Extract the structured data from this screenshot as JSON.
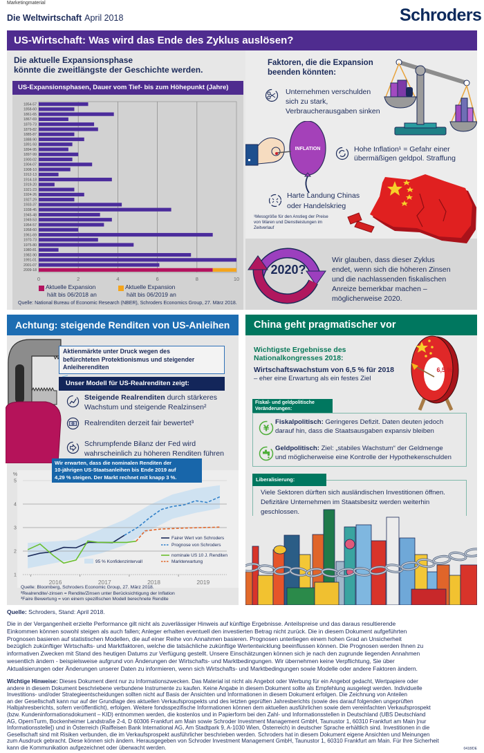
{
  "header": {
    "marketing": "Marketingmaterial",
    "title_bold": "Die Weltwirtschaft",
    "title_date": "April 2018",
    "logo": "Schroders"
  },
  "us": {
    "banner": "US-Wirtschaft: Was wird das Ende des Zyklus auslösen?",
    "headline": [
      "Die aktuelle Expansionsphase",
      "könnte die zweitlängste der Geschichte werden."
    ],
    "chart_source": "Quelle: National Bureau of Economic Research (NBER), Schroders Economics Group, 27. März 2018.",
    "factors_title": [
      "Faktoren, die die Expansion",
      "beenden könnten:"
    ],
    "factors": [
      {
        "icon": "scissors-icon",
        "lines": [
          "Unternehmen verschulden",
          "sich zu stark,",
          "Verbraucherausgaben sinken"
        ]
      },
      {
        "icon": "cycle-arrows-icon",
        "lines": [
          "Hohe Inflation¹ = Gefahr einer",
          "übermäßigen geldpol. Straffung"
        ]
      },
      {
        "icon": "crash-icon",
        "lines": [
          "Harte Landung Chinas",
          "oder Handelskrieg"
        ]
      }
    ],
    "balloon_label": "INFLATION",
    "footnote": [
      "¹Messgröße für den Anstieg der Preise",
      "von Waren und Dienstleistungen im",
      "Zeitverlauf"
    ],
    "cycle_label": "2020?",
    "conclusion": [
      "Wir glauben, dass dieser Zyklus",
      "endet, wenn sich die höheren Z‌insen",
      "und die nachlassenden fiskalischen",
      "Anreize bemerkbar machen –",
      "möglicherweise 2020."
    ]
  },
  "bonds": {
    "banner": "Achtung: steigende Renditen von US-Anleihen",
    "alert": [
      "Aktienmärkte unter Druck wegen des",
      "befürchteten Protektionismus und steigender",
      "Anleiherenditen"
    ],
    "model_title": "Unser Modell für US-Realrenditen zeigt:",
    "items": [
      {
        "icon": "rising-chart-icon",
        "bold": "Steigende Realrenditen",
        "text": " durch stärkeres",
        "line2": "Wachstum und steigende Realzinsen²"
      },
      {
        "icon": "banknote-icon",
        "text": "Realrenditen derzeit fair bewertet³"
      },
      {
        "icon": "arrow-right-icon",
        "text": "Schrumpfende Bilanz der Fed wird",
        "line2": "wahrscheinlich zu höheren Renditen führen"
      }
    ],
    "callout": [
      "Wir erwarten, dass die nominalen Renditen der",
      "10-jährigen US-Staatsanleihen bis Ende 2019 auf",
      "4,29 % steigen. Der Markt rechnet mit knapp 3 %."
    ],
    "notes": [
      "Quelle: Bloomberg, Schroders Economic Group, 27. März 2018.",
      "²Realrendite/-zinsen = Rendite/Zinsen unter Berücksichtigung der Inflation",
      "³Faire Bewertung = von einem spezifischen Modell berechnete Rendite"
    ]
  },
  "china": {
    "banner": "China geht pragmatischer vor",
    "subtitle": [
      "Wichtigste Ergebnisse des",
      "Nationalkongresses 2018:"
    ],
    "growth_bold": "Wirtschaftswachstum von 6,5 % für 2018",
    "growth_note": "– eher eine Erwartung als ein festes Ziel",
    "target_label": "6,5 %",
    "policy_tag": [
      "Fiskal- und geldpolitische",
      "Veränderungen:"
    ],
    "policies": [
      {
        "icon": "yen-icon",
        "bold": "Fiskalpolitisch:",
        "text": " Geringeres Defizit. Daten deuten jedoch",
        "line2": "darauf hin, dass die Staatsausgaben expansiv bleiben"
      },
      {
        "icon": "tap-icon",
        "bold": "Geldpolitisch:",
        "text": " Ziel: „stabiles Wachstum“ der Geldmenge",
        "line2": "und möglicherweise eine Kontrolle der Hypothekenschulden"
      }
    ],
    "liberal_tag": "Liberalisierung:",
    "liberal_text": [
      "Viele Sektoren dürften sich ausländischen Investitionen öffnen.",
      "Defizitäre Unternehmen im Staatsbesitz werden weiterhin",
      "geschlossen."
    ]
  },
  "footer": {
    "source_bold": "Quelle:",
    "source_text": " Schroders, Stand: April 2018.",
    "disclaimer": [
      "Die in der Vergangenheit erzielte Performance gilt nicht als zuverlässiger Hinweis auf künftige Ergebnisse. Anteilspreise und das daraus resultierende",
      "Einkommen können sowohl steigen als auch fallen; Anleger erhalten eventuell den investierten Betrag nicht zurück. Die in diesem Dokument aufgeführten",
      "Prognosen basieren auf statistischen Modellen, die auf einer Reihe von Annahmen basieren. Prognosen unterliegen einem hohen Grad an Unsicherheit",
      "bezüglich zukünftiger Wirtschafts- und Marktfaktoren, welche die tatsächliche zukünftige Wertentwicklung beeinflussen können. Die Prognosen werden Ihnen zu",
      "informativen Zwecken mit Stand des heutigen Datums zur Verfügung gestellt. Unsere Einschätzungen können sich je nach den zugrunde liegenden Annahmen",
      "wesentlich ändern - beispielsweise aufgrund von Änderungen der Wirtschafts- und Marktbedingungen. Wir übernehmen keine Verpflichtung, Sie über",
      "Aktualisierungen oder Änderungen unserer Daten zu informieren, wenn sich Wirtschafts- und Marktbedingungen sowie Modelle oder andere Faktoren ändern."
    ],
    "notice_bold": "Wichtige Hinweise:",
    "notice_first": " Dieses Dokument dient nur zu Informationszwecken. Das Material ist nicht als Angebot oder Werbung für ein Angebot gedacht, Wertpapiere oder",
    "notice_lines": [
      "andere in diesem Dokument beschriebene verbundene Instrumente zu kaufen. Keine Angabe in diesem Dokument sollte als Empfehlung ausgelegt werden. Individuelle",
      "Investitions- und/oder Strategieentscheidungen sollten nicht auf Basis der Ansichten und Informationen in diesem Dokument erfolgen. Die Zeichnung von Anteilen",
      "an der Gesellschaft kann nur auf der Grundlage des aktuellen Verkaufsprospekts und des letzten geprüften Jahresberichts (sowie des darauf folgenden ungeprüften",
      "Halbjahresberichts, sofern veröffentlicht), erfolgen. Weitere fondsspezifische Informationen können dem aktuellen ausführlichen sowie dem vereinfachten Verkaufsprospekt",
      "(bzw. Kundeninformationsdokument – KID) entnommen werden, die kostenlos und in Papierform bei den Zahl- und Informationsstellen in Deutschland (UBS Deutschland",
      "AG, OpernTurm, Bockenheimer Landstraße 2-4, D 60306 Frankfurt am Main sowie Schroder Investment Management GmbH, Taunustor 1, 60310 Frankfurt am Main [nur",
      "Informationsstelle]) und in Österreich (Raiffeisen Bank International AG, Am Stadtpark 9, A-1030 Wien, Österreich) in deutscher Sprache erhältlich sind. Investitionen in die",
      "Gesellschaft sind mit Risiken verbunden, die im Verkaufsprospekt ausführlicher beschrieben werden. Schroders hat in diesem Dokument eigene Ansichten und Meinungen",
      "zum Ausdruck gebracht. Diese können sich ändern. Herausgegeben von Schroder Investment Management GmbH, Taunustor 1, 60310 Frankfurt am Main. Für Ihre Sicherheit",
      "kann die Kommunikation aufgezeichnet oder überwacht werden."
    ],
    "code": "0418/DE"
  },
  "colors": {
    "purple": "#4f2c8f",
    "navy": "#1b2a59",
    "blue": "#1d6db2",
    "green": "#00775f",
    "magenta": "#b3135f",
    "orange": "#f4a41c"
  },
  "chart_data": [
    {
      "type": "bar",
      "orientation": "horizontal",
      "title": "US-Expansionsphasen, Dauer vom Tief- bis zum Höhepunkt (Jahre)",
      "xlabel": "",
      "ylabel": "",
      "xlim": [
        0,
        10
      ],
      "xticks": [
        0,
        2,
        4,
        6,
        8,
        10
      ],
      "grid": true,
      "bar_color": "#4b2c9c",
      "categories": [
        "1854-57",
        "1858-60",
        "1861-65",
        "1867-69",
        "1870-73",
        "1879-82",
        "1885-87",
        "1888-90",
        "1891-93",
        "1894-95",
        "1897-99",
        "1900-02",
        "1904-07",
        "1908-10",
        "1912-13",
        "1914-18",
        "1919-20",
        "1921-23",
        "1924-26",
        "1927-29",
        "1933-37",
        "1938-45",
        "1945-48",
        "1949-53",
        "1954-57",
        "1958-60",
        "1961-69",
        "1970-73",
        "1975-80",
        "1980-81",
        "1982-90",
        "1991-01",
        "2001-07",
        "2009-18"
      ],
      "values": [
        2.5,
        1.8,
        3.8,
        1.5,
        2.8,
        3.0,
        1.8,
        2.3,
        1.7,
        1.5,
        2.0,
        1.7,
        2.7,
        1.6,
        1.0,
        3.7,
        0.8,
        1.8,
        2.3,
        1.8,
        4.2,
        6.7,
        3.1,
        3.7,
        3.3,
        2.0,
        8.8,
        3.0,
        4.8,
        1.0,
        7.7,
        10.0,
        6.1,
        8.8
      ],
      "current": {
        "category": "2009-18",
        "segments": [
          {
            "from": 0,
            "to": 8.8,
            "color": "#b3135f",
            "label_lines": [
              "Aktuelle Expansion",
              "hält bis 06/2018 an"
            ]
          },
          {
            "from": 8.8,
            "to": 10.0,
            "color": "#f4a41c",
            "label_lines": [
              "Aktuelle Expansion",
              "hält bis 06/2019 an"
            ]
          }
        ]
      },
      "legend_position": "bottom"
    },
    {
      "type": "line",
      "title": "",
      "xlabel": "",
      "ylabel": "%",
      "xlim": [
        2015.84,
        2019.98
      ],
      "ylim": [
        1,
        5
      ],
      "yticks": [
        1,
        2,
        3,
        4,
        5
      ],
      "xtick_labels": [
        "2016",
        "2017",
        "2018",
        "2019"
      ],
      "grid": true,
      "legend_position": "bottom-right",
      "series": [
        {
          "name": "Fairer Wert von Schroders",
          "style": "solid",
          "color": "#1b2a59",
          "x": [
            2015.94,
            2016.19,
            2016.4,
            2016.67,
            2016.92,
            2017.17,
            2017.44,
            2017.66,
            2017.9
          ],
          "y": [
            1.78,
            1.91,
            1.96,
            2.16,
            2.14,
            2.37,
            2.37,
            2.36,
            2.67
          ]
        },
        {
          "name": "Prognose von Schroders",
          "style": "dashed",
          "color": "#2f7fc8",
          "x": [
            2017.9,
            2018.18,
            2018.42,
            2018.65,
            2018.88,
            2019.12,
            2019.35,
            2019.58,
            2019.84
          ],
          "y": [
            2.67,
            3.02,
            3.43,
            3.77,
            3.9,
            3.97,
            4.14,
            4.07,
            4.31
          ]
        },
        {
          "name": "nominale US 10 J. Renditen",
          "style": "solid",
          "color": "#6abf2e",
          "x": [
            2015.94,
            2016.19,
            2016.46,
            2016.67,
            2016.92,
            2017.16,
            2017.38,
            2017.66,
            2017.95,
            2018.14
          ],
          "y": [
            2.06,
            2.3,
            1.81,
            1.49,
            1.62,
            2.43,
            2.37,
            2.37,
            2.37,
            2.42
          ]
        },
        {
          "name": "Markterwartung",
          "style": "dashed",
          "color": "#e0662a",
          "x": [
            2018.14,
            2018.32,
            2018.65,
            2019.12,
            2019.84
          ],
          "y": [
            2.42,
            2.86,
            2.94,
            2.98,
            3.02
          ]
        }
      ],
      "band": {
        "name": "95 % Konfidenzintervall",
        "color": "#cfe2f1",
        "x": [
          2015.94,
          2016.92,
          2017.44,
          2017.9,
          2018.42,
          2018.88,
          2019.35,
          2019.84
        ],
        "lower": [
          1.27,
          1.67,
          1.91,
          2.25,
          2.89,
          3.38,
          3.63,
          3.82
        ],
        "upper": [
          2.35,
          2.47,
          2.94,
          3.33,
          3.97,
          4.41,
          4.66,
          4.8
        ]
      }
    }
  ]
}
